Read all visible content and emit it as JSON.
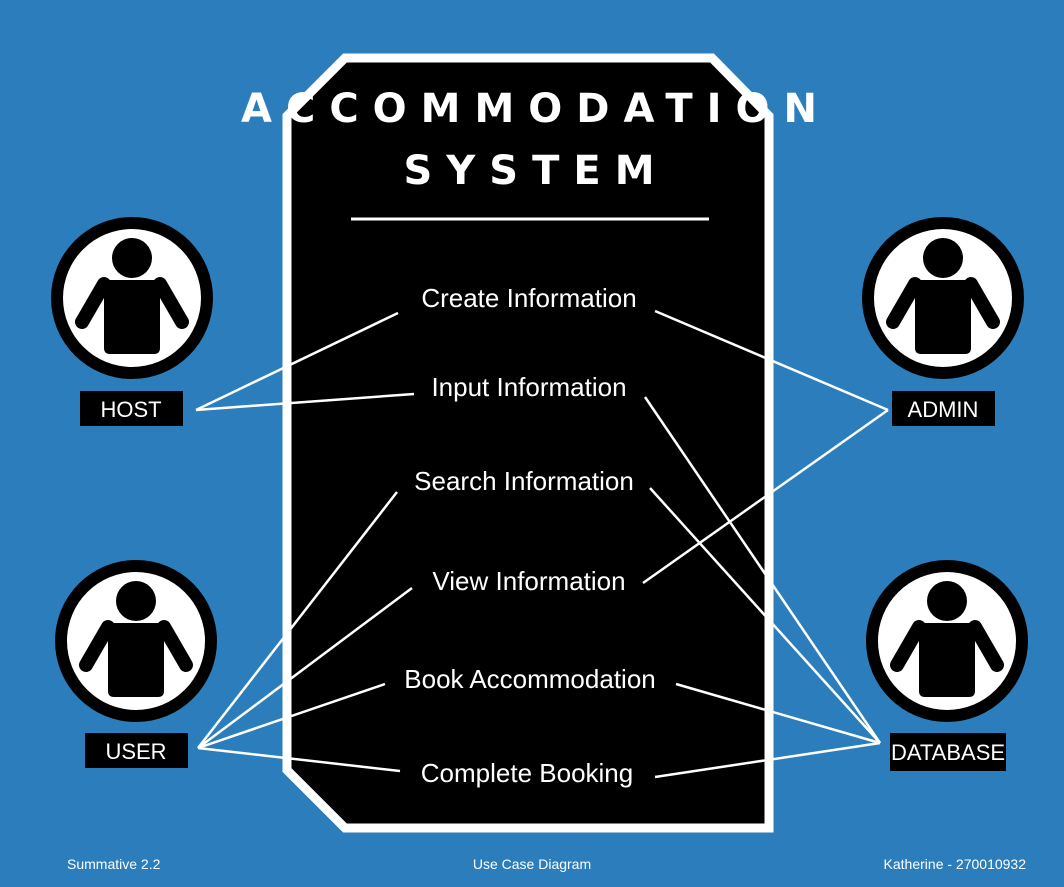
{
  "title_line1": "ACCOMMODATION",
  "title_line2": "SYSTEM",
  "use_cases": [
    {
      "id": "create",
      "label": "Create Information"
    },
    {
      "id": "input",
      "label": "Input Information"
    },
    {
      "id": "search",
      "label": "Search Information"
    },
    {
      "id": "view",
      "label": "View Information"
    },
    {
      "id": "book",
      "label": "Book Accommodation"
    },
    {
      "id": "complete",
      "label": "Complete Booking"
    }
  ],
  "actors": [
    {
      "id": "host",
      "label": "HOST"
    },
    {
      "id": "admin",
      "label": "ADMIN"
    },
    {
      "id": "user",
      "label": "USER"
    },
    {
      "id": "database",
      "label": "DATABASE"
    }
  ],
  "connections": [
    {
      "from": "host",
      "to": "create"
    },
    {
      "from": "host",
      "to": "input"
    },
    {
      "from": "admin",
      "to": "create"
    },
    {
      "from": "admin",
      "to": "view"
    },
    {
      "from": "user",
      "to": "search"
    },
    {
      "from": "user",
      "to": "view"
    },
    {
      "from": "user",
      "to": "book"
    },
    {
      "from": "user",
      "to": "complete"
    },
    {
      "from": "database",
      "to": "input"
    },
    {
      "from": "database",
      "to": "search"
    },
    {
      "from": "database",
      "to": "book"
    },
    {
      "from": "database",
      "to": "complete"
    }
  ],
  "footer": {
    "left": "Summative 2.2",
    "center": "Use Case Diagram",
    "right": "Katherine - 270010932"
  },
  "colors": {
    "background": "#2b7ebb",
    "panel": "#000000",
    "line": "#ffffff"
  }
}
